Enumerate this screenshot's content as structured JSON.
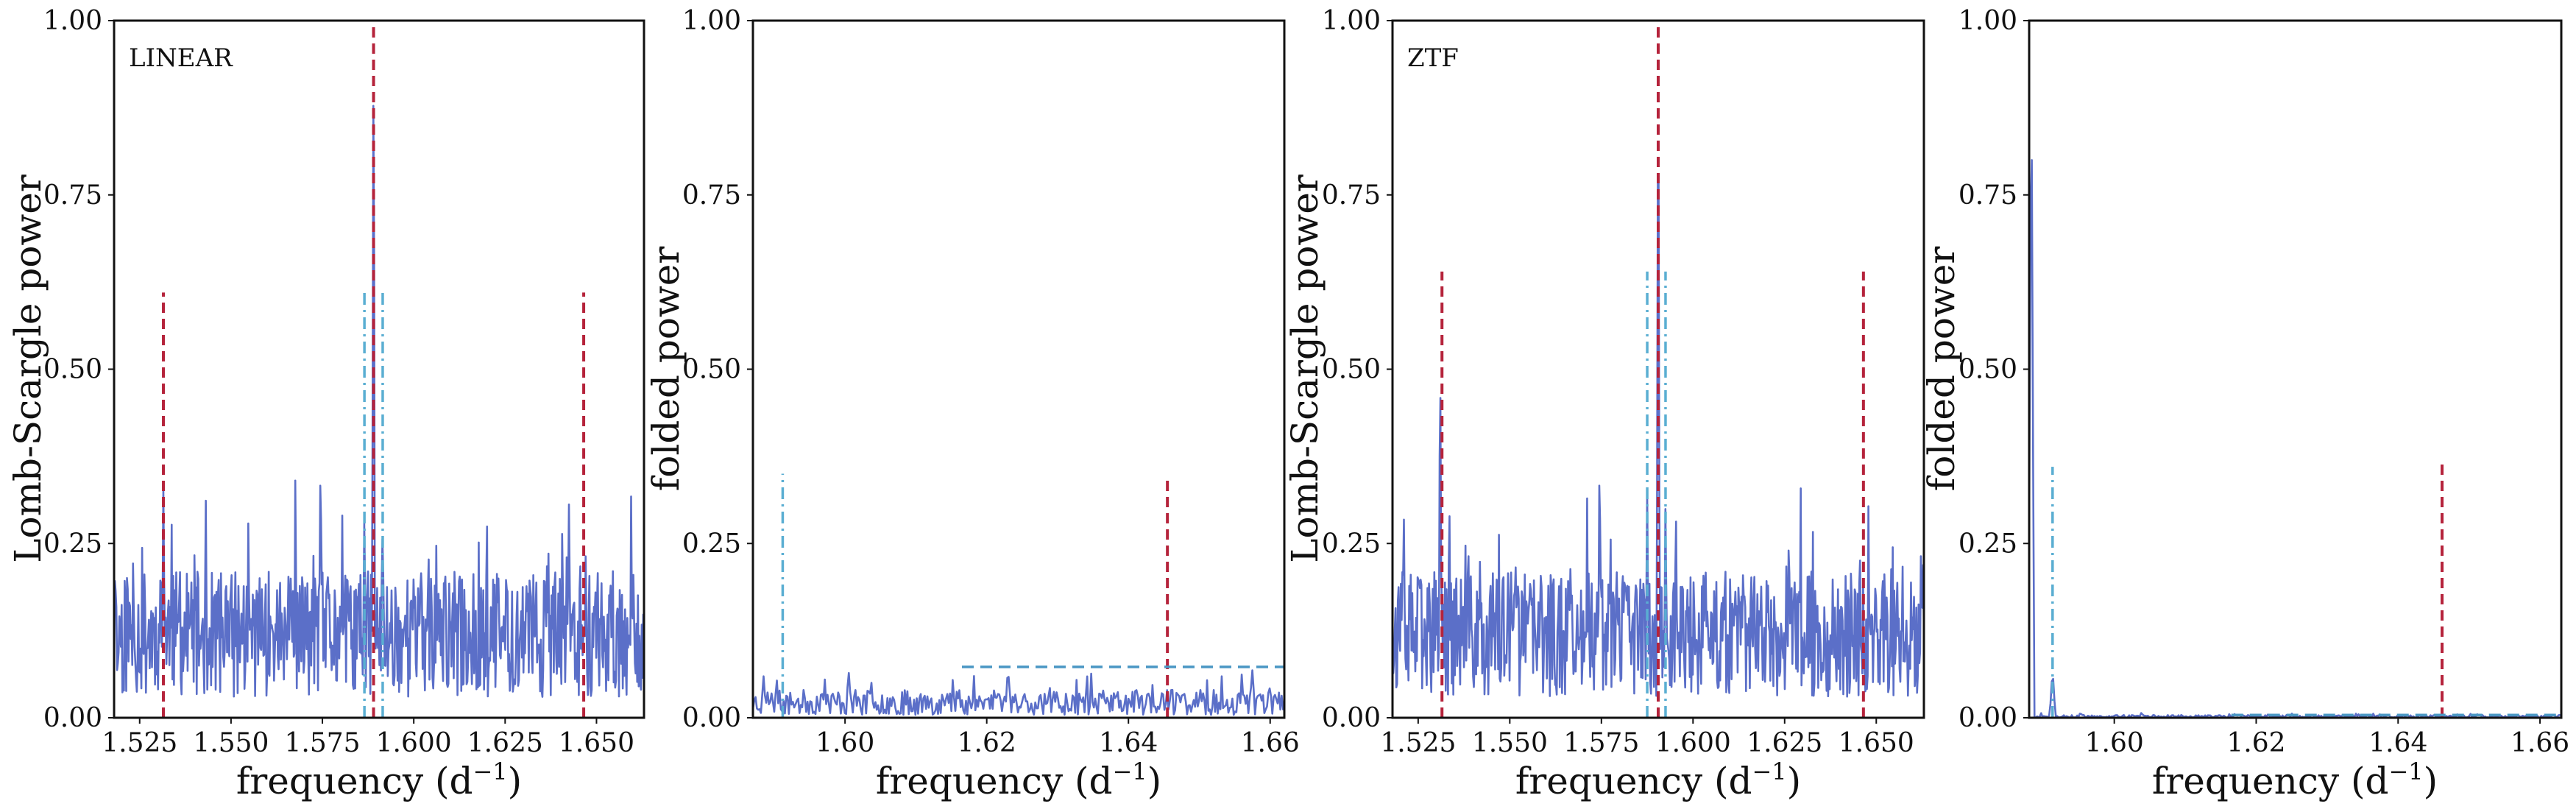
{
  "colors": {
    "periodogram": "#5b6fc8",
    "red_line": "#b5233b",
    "cyan_line": "#5aaed2",
    "threshold": "#4a97c4"
  },
  "chart_data": [
    {
      "type": "line",
      "corner_label": "LINEAR",
      "xlabel": "frequency (d",
      "xlabel_sup": "−1",
      "xlabel_tail": ")",
      "ylabel": "Lomb-Scargle power",
      "xlim": [
        1.518,
        1.663
      ],
      "ylim": [
        0,
        1
      ],
      "xticks": [
        {
          "v": 1.525,
          "label": "1.525"
        },
        {
          "v": 1.55,
          "label": "1.550"
        },
        {
          "v": 1.575,
          "label": "1.575"
        },
        {
          "v": 1.6,
          "label": "1.600"
        },
        {
          "v": 1.625,
          "label": "1.625"
        },
        {
          "v": 1.65,
          "label": "1.650"
        }
      ],
      "yticks": [
        {
          "v": 0,
          "label": "0.00"
        },
        {
          "v": 0.25,
          "label": "0.25"
        },
        {
          "v": 0.5,
          "label": "0.50"
        },
        {
          "v": 0.75,
          "label": "0.75"
        },
        {
          "v": 1,
          "label": "1.00"
        }
      ],
      "noise": {
        "n": 700,
        "mean": 0.12,
        "amp": 0.09,
        "seed": 11
      },
      "spikes": [
        {
          "x": 1.589,
          "y": 1.0
        },
        {
          "x": 1.5865,
          "y": 0.31
        },
        {
          "x": 1.5915,
          "y": 0.3
        },
        {
          "x": 1.5315,
          "y": 0.34
        },
        {
          "x": 1.6455,
          "y": 0.26
        },
        {
          "x": 1.5745,
          "y": 0.4
        }
      ],
      "vlines": [
        {
          "x": 1.5315,
          "y0": 0,
          "y1": 0.61,
          "style": "red-dash"
        },
        {
          "x": 1.589,
          "y0": 0,
          "y1": 1.0,
          "style": "red-dash"
        },
        {
          "x": 1.6465,
          "y0": 0,
          "y1": 0.61,
          "style": "red-dash"
        },
        {
          "x": 1.5865,
          "y0": 0,
          "y1": 0.61,
          "style": "cyan-dashdot"
        },
        {
          "x": 1.5915,
          "y0": 0,
          "y1": 0.61,
          "style": "cyan-dashdot"
        }
      ],
      "hlines": []
    },
    {
      "type": "line",
      "corner_label": "",
      "xlabel": "frequency (d",
      "xlabel_sup": "−1",
      "xlabel_tail": ")",
      "ylabel": "folded power",
      "xlim": [
        1.587,
        1.662
      ],
      "ylim": [
        0,
        1
      ],
      "xticks": [
        {
          "v": 1.6,
          "label": "1.60"
        },
        {
          "v": 1.62,
          "label": "1.62"
        },
        {
          "v": 1.64,
          "label": "1.64"
        },
        {
          "v": 1.66,
          "label": "1.66"
        }
      ],
      "yticks": [
        {
          "v": 0,
          "label": "0.00"
        },
        {
          "v": 0.25,
          "label": "0.25"
        },
        {
          "v": 0.5,
          "label": "0.50"
        },
        {
          "v": 0.75,
          "label": "0.75"
        },
        {
          "v": 1,
          "label": "1.00"
        }
      ],
      "noise": {
        "n": 400,
        "mean": 0.022,
        "amp": 0.018,
        "seed": 23
      },
      "spikes": [
        {
          "x": 1.5885,
          "y": 0.06
        },
        {
          "x": 1.623,
          "y": 0.075
        },
        {
          "x": 1.6575,
          "y": 0.07
        },
        {
          "x": 1.6005,
          "y": 0.07
        }
      ],
      "vlines": [
        {
          "x": 1.5912,
          "y0": 0,
          "y1": 0.35,
          "style": "cyan-dashdot"
        },
        {
          "x": 1.6455,
          "y0": 0,
          "y1": 0.345,
          "style": "red-dash"
        }
      ],
      "hlines": [
        {
          "y": 0.073,
          "x0": 1.6165,
          "x1": 1.662,
          "style": "blue-dash"
        }
      ]
    },
    {
      "type": "line",
      "corner_label": "ZTF",
      "xlabel": "frequency (d",
      "xlabel_sup": "−1",
      "xlabel_tail": ")",
      "ylabel": "Lomb-Scargle power",
      "xlim": [
        1.518,
        1.663
      ],
      "ylim": [
        0,
        1
      ],
      "xticks": [
        {
          "v": 1.525,
          "label": "1.525"
        },
        {
          "v": 1.55,
          "label": "1.550"
        },
        {
          "v": 1.575,
          "label": "1.575"
        },
        {
          "v": 1.6,
          "label": "1.600"
        },
        {
          "v": 1.625,
          "label": "1.625"
        },
        {
          "v": 1.65,
          "label": "1.650"
        }
      ],
      "yticks": [
        {
          "v": 0,
          "label": "0.00"
        },
        {
          "v": 0.25,
          "label": "0.25"
        },
        {
          "v": 0.5,
          "label": "0.50"
        },
        {
          "v": 0.75,
          "label": "0.75"
        },
        {
          "v": 1,
          "label": "1.00"
        }
      ],
      "noise": {
        "n": 700,
        "mean": 0.12,
        "amp": 0.09,
        "seed": 37
      },
      "spikes": [
        {
          "x": 1.5905,
          "y": 1.0
        },
        {
          "x": 1.531,
          "y": 0.54
        },
        {
          "x": 1.5875,
          "y": 0.33
        },
        {
          "x": 1.5925,
          "y": 0.32
        },
        {
          "x": 1.5745,
          "y": 0.4
        },
        {
          "x": 1.6455,
          "y": 0.27
        }
      ],
      "vlines": [
        {
          "x": 1.5315,
          "y0": 0,
          "y1": 0.64,
          "style": "red-dash"
        },
        {
          "x": 1.5905,
          "y0": 0,
          "y1": 1.0,
          "style": "red-dash"
        },
        {
          "x": 1.6465,
          "y0": 0,
          "y1": 0.64,
          "style": "red-dash"
        },
        {
          "x": 1.5875,
          "y0": 0,
          "y1": 0.64,
          "style": "cyan-dashdot"
        },
        {
          "x": 1.5925,
          "y0": 0,
          "y1": 0.64,
          "style": "cyan-dashdot"
        }
      ],
      "hlines": []
    },
    {
      "type": "line",
      "corner_label": "",
      "xlabel": "frequency (d",
      "xlabel_sup": "−1",
      "xlabel_tail": ")",
      "ylabel": "folded power",
      "xlim": [
        1.588,
        1.663
      ],
      "ylim": [
        0,
        1
      ],
      "xticks": [
        {
          "v": 1.6,
          "label": "1.60"
        },
        {
          "v": 1.62,
          "label": "1.62"
        },
        {
          "v": 1.64,
          "label": "1.64"
        },
        {
          "v": 1.66,
          "label": "1.66"
        }
      ],
      "yticks": [
        {
          "v": 0,
          "label": "0.00"
        },
        {
          "v": 0.25,
          "label": "0.25"
        },
        {
          "v": 0.5,
          "label": "0.50"
        },
        {
          "v": 0.75,
          "label": "0.75"
        },
        {
          "v": 1,
          "label": "1.00"
        }
      ],
      "noise": {
        "n": 400,
        "mean": 0.002,
        "amp": 0.002,
        "seed": 5
      },
      "spikes": [
        {
          "x": 1.5883,
          "y": 0.98
        },
        {
          "x": 1.5913,
          "y": 0.07
        }
      ],
      "vlines": [
        {
          "x": 1.5913,
          "y0": 0,
          "y1": 0.36,
          "style": "cyan-dashdot"
        },
        {
          "x": 1.6462,
          "y0": 0,
          "y1": 0.365,
          "style": "red-dash"
        }
      ],
      "hlines": [
        {
          "y": 0.004,
          "x0": 1.6165,
          "x1": 1.663,
          "style": "blue-dash"
        }
      ]
    }
  ]
}
